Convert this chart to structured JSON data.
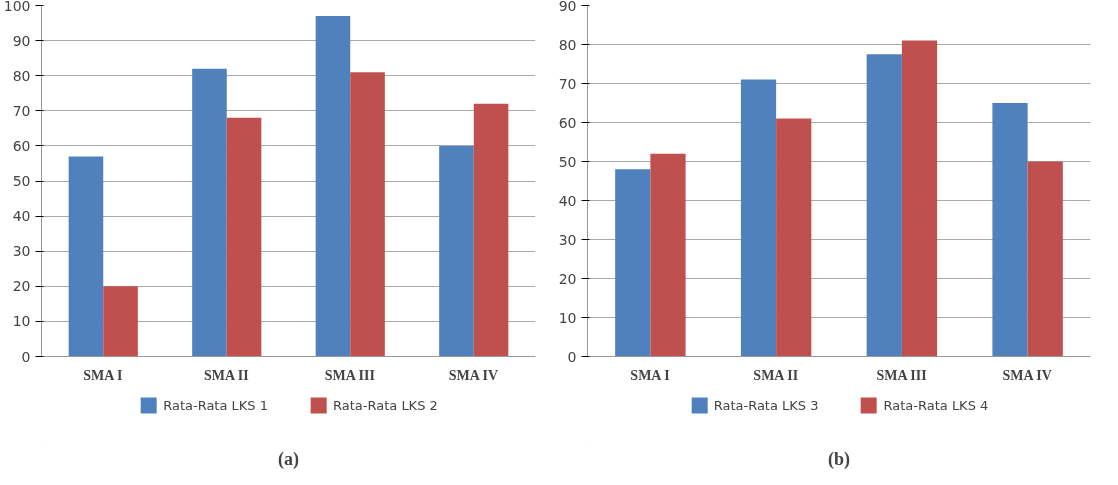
{
  "chart_data": [
    {
      "type": "bar",
      "title": "(a)",
      "categories": [
        "SMA I",
        "SMA II",
        "SMA III",
        "SMA IV"
      ],
      "series": [
        {
          "name": "Rata-Rata LKS 1",
          "color": "#4f81bd",
          "values": [
            57,
            82,
            97,
            60
          ]
        },
        {
          "name": "Rata-Rata LKS 2",
          "color": "#c0504d",
          "values": [
            20,
            68,
            81,
            72
          ]
        }
      ],
      "ylim": [
        0,
        100
      ],
      "yticks": [
        0,
        10,
        20,
        30,
        40,
        50,
        60,
        70,
        80,
        90,
        100
      ],
      "grid": "y",
      "legend": "bottom"
    },
    {
      "type": "bar",
      "title": "(b)",
      "categories": [
        "SMA I",
        "SMA II",
        "SMA III",
        "SMA IV"
      ],
      "series": [
        {
          "name": "Rata-Rata LKS 3",
          "color": "#4f81bd",
          "values": [
            48,
            71,
            77.5,
            65
          ]
        },
        {
          "name": "Rata-Rata LKS 4",
          "color": "#c0504d",
          "values": [
            52,
            61,
            81,
            50
          ]
        }
      ],
      "ylim": [
        0,
        90
      ],
      "yticks": [
        0,
        10,
        20,
        30,
        40,
        50,
        60,
        70,
        80,
        90
      ],
      "grid": "y",
      "legend": "bottom"
    }
  ]
}
